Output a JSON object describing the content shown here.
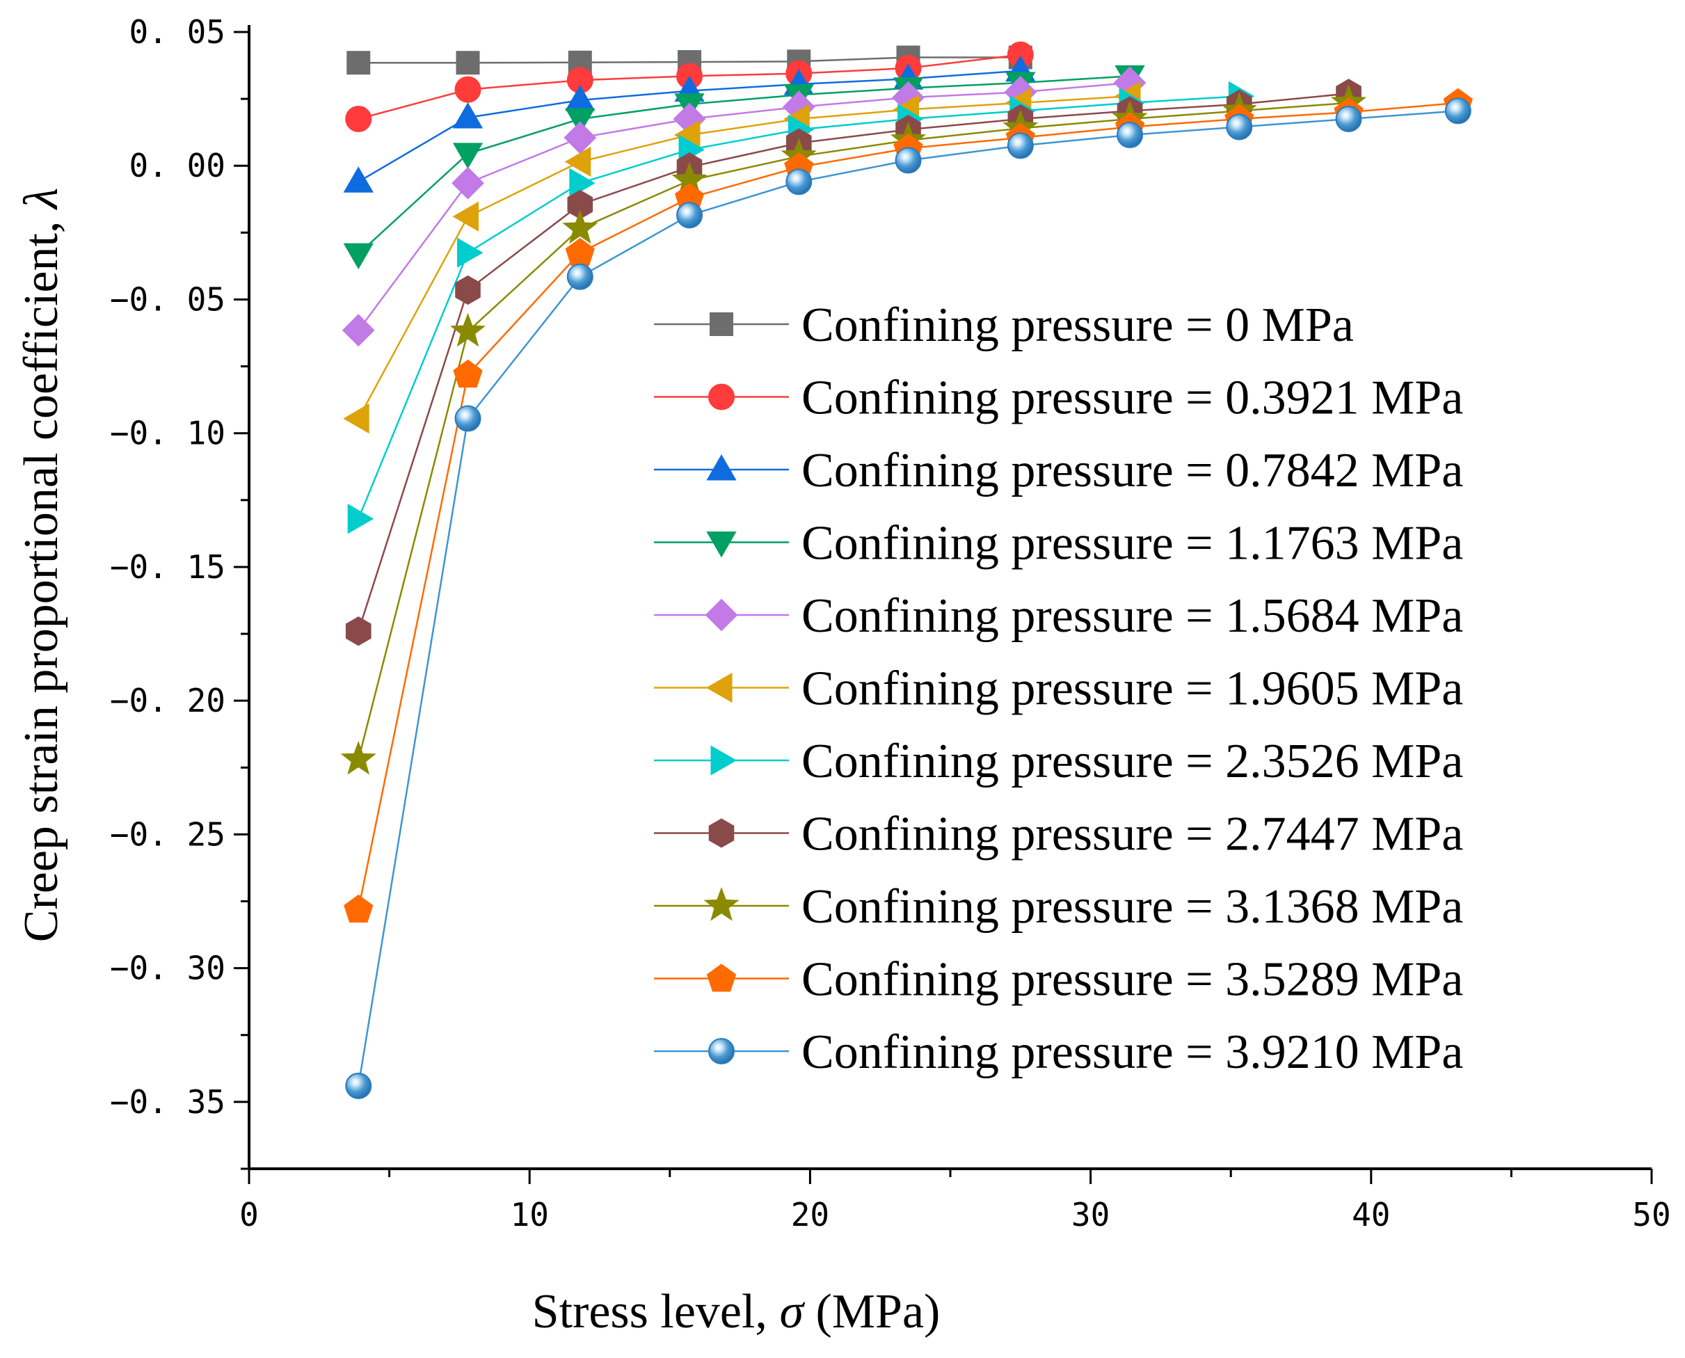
{
  "chart_data": {
    "type": "line",
    "title": "",
    "xlabel_parts": [
      "Stress level, ",
      "σ",
      " (MPa)"
    ],
    "ylabel_parts": [
      "Creep strain proportional coefficient, ",
      "λ"
    ],
    "xlim": [
      0,
      50
    ],
    "ylim": [
      -0.375,
      0.05
    ],
    "x_ticks": [
      0,
      10,
      20,
      30,
      40,
      50
    ],
    "x_tick_labels": [
      "0",
      "10",
      "20",
      "30",
      "40",
      "50"
    ],
    "y_ticks": [
      0.05,
      0.0,
      -0.05,
      -0.1,
      -0.15,
      -0.2,
      -0.25,
      -0.3,
      -0.35
    ],
    "y_tick_labels": [
      "0. 05",
      "0. 00",
      "−0. 05",
      "−0. 10",
      "−0. 15",
      "−0. 20",
      "−0. 25",
      "−0. 30",
      "−0. 35"
    ],
    "grid": false,
    "legend_position": "center-right",
    "series": [
      {
        "name": "Confining pressure = 0 MPa",
        "color": "#6d6d6d",
        "marker": "square",
        "x": [
          3.9,
          7.8,
          11.8,
          15.7,
          19.6,
          23.5,
          27.5
        ],
        "y": [
          0.0385,
          0.0385,
          0.0386,
          0.0388,
          0.039,
          0.0405,
          0.0405
        ]
      },
      {
        "name": "Confining pressure = 0.3921 MPa",
        "color": "#ff3b3b",
        "marker": "circle",
        "x": [
          3.9,
          7.8,
          11.8,
          15.7,
          19.6,
          23.5,
          27.5
        ],
        "y": [
          0.0175,
          0.0285,
          0.032,
          0.0335,
          0.0345,
          0.0365,
          0.0415
        ]
      },
      {
        "name": "Confining pressure = 0.7842 MPa",
        "color": "#0f6ce0",
        "marker": "triangle-up",
        "x": [
          3.9,
          7.8,
          11.8,
          15.7,
          19.6,
          23.5,
          27.5
        ],
        "y": [
          -0.006,
          0.018,
          0.0245,
          0.028,
          0.0305,
          0.0325,
          0.0355
        ]
      },
      {
        "name": "Confining pressure = 1.1763 MPa",
        "color": "#00a063",
        "marker": "triangle-down",
        "x": [
          3.9,
          7.8,
          11.8,
          15.7,
          19.6,
          23.5,
          27.5,
          31.4
        ],
        "y": [
          -0.033,
          0.0045,
          0.0175,
          0.023,
          0.0265,
          0.029,
          0.031,
          0.0335
        ]
      },
      {
        "name": "Confining pressure = 1.5684 MPa",
        "color": "#c27ae6",
        "marker": "diamond",
        "x": [
          3.9,
          7.8,
          11.8,
          15.7,
          19.6,
          23.5,
          27.5,
          31.4
        ],
        "y": [
          -0.0615,
          -0.0065,
          0.0105,
          0.0175,
          0.022,
          0.0255,
          0.0275,
          0.031
        ]
      },
      {
        "name": "Confining pressure = 1.9605 MPa",
        "color": "#dea20b",
        "marker": "triangle-left",
        "x": [
          3.9,
          7.8,
          11.8,
          15.7,
          19.6,
          23.5,
          27.5,
          31.4
        ],
        "y": [
          -0.0945,
          -0.019,
          0.0015,
          0.0115,
          0.0175,
          0.021,
          0.0235,
          0.026
        ]
      },
      {
        "name": "Confining pressure = 2.3526 MPa",
        "color": "#00cdcd",
        "marker": "triangle-right",
        "x": [
          3.9,
          7.8,
          11.8,
          15.7,
          19.6,
          23.5,
          27.5,
          31.4,
          35.3
        ],
        "y": [
          -0.132,
          -0.0325,
          -0.0065,
          0.006,
          0.0135,
          0.0175,
          0.0205,
          0.0235,
          0.026
        ]
      },
      {
        "name": "Confining pressure = 2.7447 MPa",
        "color": "#8a4a4a",
        "marker": "hexagon",
        "x": [
          3.9,
          7.8,
          11.8,
          15.7,
          19.6,
          23.5,
          27.5,
          31.4,
          35.3,
          39.2
        ],
        "y": [
          -0.174,
          -0.0465,
          -0.0145,
          -0.0005,
          0.0085,
          0.0135,
          0.0175,
          0.0205,
          0.023,
          0.027
        ]
      },
      {
        "name": "Confining pressure = 3.1368 MPa",
        "color": "#8a8a00",
        "marker": "star",
        "x": [
          3.9,
          7.8,
          11.8,
          15.7,
          19.6,
          23.5,
          27.5,
          31.4,
          35.3,
          39.2
        ],
        "y": [
          -0.222,
          -0.062,
          -0.0235,
          -0.0055,
          0.0035,
          0.0095,
          0.014,
          0.0175,
          0.0205,
          0.0235
        ]
      },
      {
        "name": "Confining pressure = 3.5289 MPa",
        "color": "#ff6a00",
        "marker": "pentagon",
        "x": [
          3.9,
          7.8,
          11.8,
          15.7,
          19.6,
          23.5,
          27.5,
          31.4,
          35.3,
          39.2,
          43.1
        ],
        "y": [
          -0.278,
          -0.078,
          -0.0325,
          -0.012,
          -0.0005,
          0.0065,
          0.0105,
          0.0145,
          0.0175,
          0.02,
          0.0235
        ]
      },
      {
        "name": "Confining pressure = 3.9210 MPa",
        "color": "#3d95d3",
        "marker": "sphere",
        "x": [
          3.9,
          7.8,
          11.8,
          15.7,
          19.6,
          23.5,
          27.5,
          31.4,
          35.3,
          39.2,
          43.1
        ],
        "y": [
          -0.344,
          -0.0945,
          -0.0415,
          -0.0185,
          -0.006,
          0.002,
          0.0075,
          0.0115,
          0.0145,
          0.0175,
          0.0205
        ]
      }
    ]
  }
}
